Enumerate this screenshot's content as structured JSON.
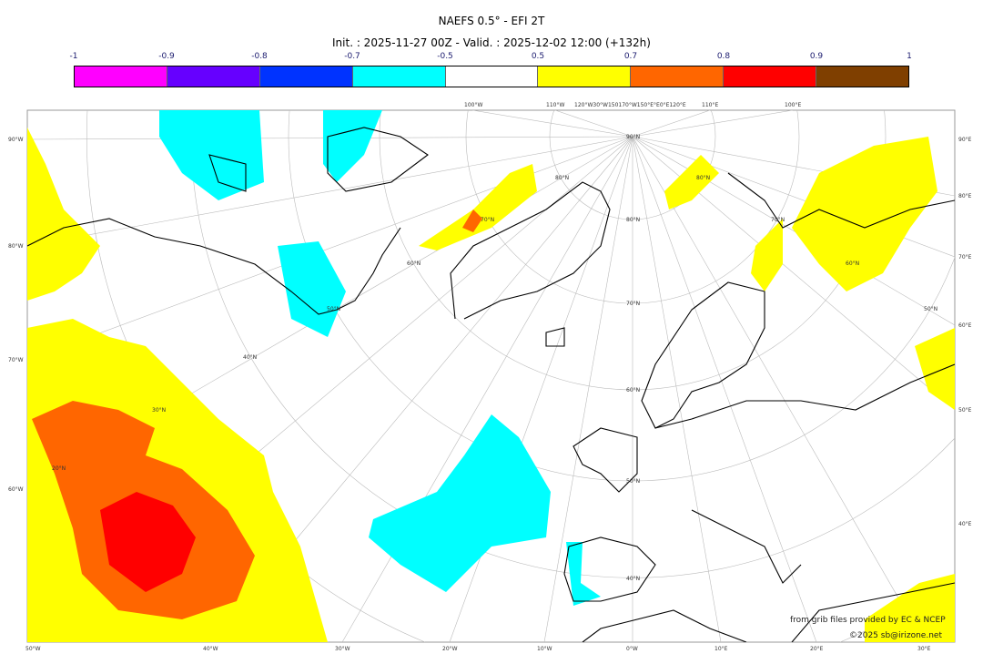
{
  "title": "NAEFS 0.5° - EFI 2T",
  "subtitle": "Init. : 2025-11-27 00Z - Valid. : 2025-12-02 12:00 (+132h)",
  "colorbar": {
    "ticks": [
      "-1",
      "-0.9",
      "-0.8",
      "-0.7",
      "-0.5",
      "0.5",
      "0.7",
      "0.8",
      "0.9",
      "1"
    ],
    "colors": [
      "#ff00ff",
      "#6600ff",
      "#0033ff",
      "#00ffff",
      "#ffffff",
      "#ffff00",
      "#ff6600",
      "#ff0000",
      "#7f3f00"
    ]
  },
  "axes": {
    "top": [
      "100°W",
      "110°W",
      "120°W30°W150170°W150°E°E0°E120°E",
      "110°E",
      "100°E"
    ],
    "left": [
      "90°W",
      "80°W",
      "70°W",
      "60°W"
    ],
    "right": [
      "90°E",
      "80°E",
      "70°E",
      "60°E",
      "50°E",
      "40°E"
    ],
    "bottom": [
      "50°W",
      "40°W",
      "30°W",
      "20°W",
      "10°W",
      "0°W",
      "10°E",
      "20°E",
      "30°E"
    ],
    "lat_labels": [
      "90°N",
      "80°N",
      "70°N",
      "60°N",
      "50°N",
      "40°N",
      "80°N",
      "70°N",
      "60°N",
      "50°N",
      "40°N",
      "30°N",
      "20°N",
      "80°N",
      "70°N",
      "60°N",
      "50°N"
    ]
  },
  "credits": {
    "source": "from grib files provided by EC & NCEP",
    "copyright": "©2025 sb@irizone.net"
  }
}
